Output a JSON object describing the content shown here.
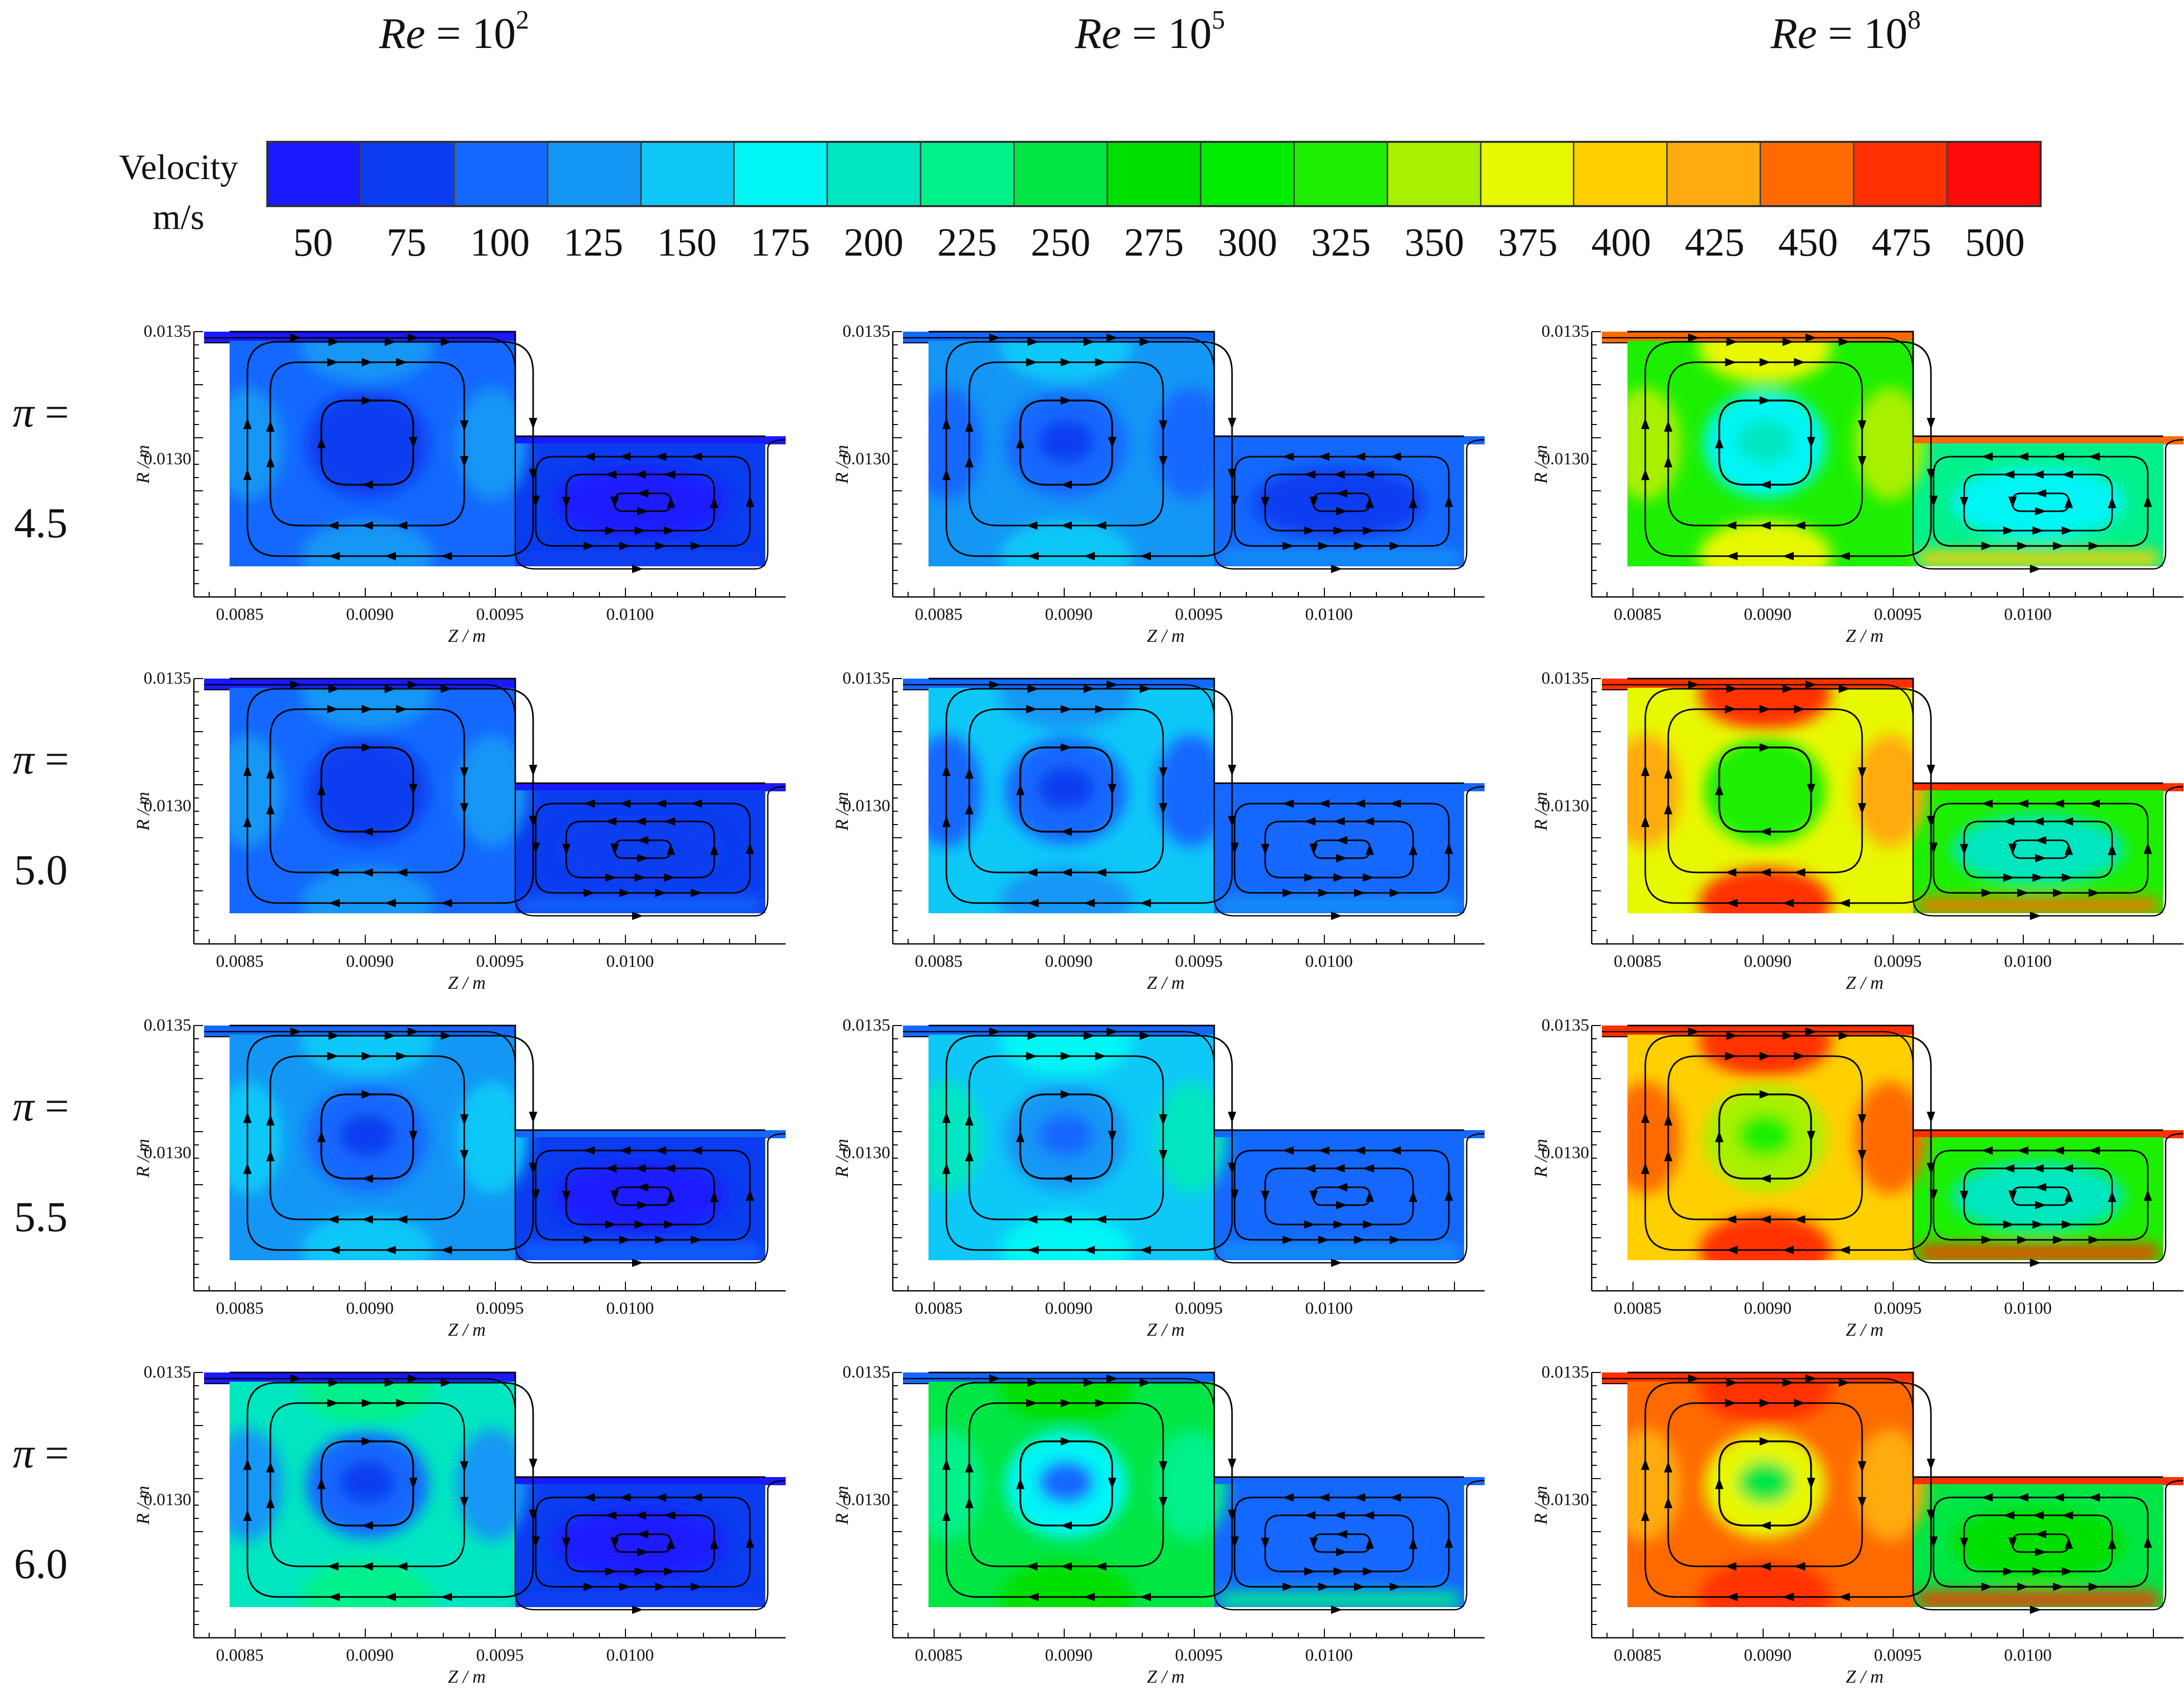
{
  "column_headers": [
    {
      "prefix": "Re",
      "base": " = 10",
      "exp": "2"
    },
    {
      "prefix": "Re",
      "base": " = 10",
      "exp": "5"
    },
    {
      "prefix": "Re",
      "base": " = 10",
      "exp": "8"
    }
  ],
  "colorbar": {
    "title_line1": "Velocity",
    "title_line2": "m/s",
    "colors": [
      "#1a1aff",
      "#0a3cf0",
      "#1468ff",
      "#1496f5",
      "#0ec8f8",
      "#00f5f5",
      "#00e6c0",
      "#00f08a",
      "#00e644",
      "#00e000",
      "#00ec00",
      "#1cf000",
      "#a8f000",
      "#e8f800",
      "#ffd000",
      "#ffaa10",
      "#ff6a00",
      "#ff3000",
      "#ff0a0a"
    ],
    "ticks": [
      "50",
      "75",
      "100",
      "125",
      "150",
      "175",
      "200",
      "225",
      "250",
      "275",
      "300",
      "325",
      "350",
      "375",
      "400",
      "425",
      "450",
      "475",
      "500"
    ]
  },
  "row_labels": [
    {
      "pi": "π",
      "eq": " =",
      "value": "4.5"
    },
    {
      "pi": "π",
      "eq": " =",
      "value": "5.0"
    },
    {
      "pi": "π",
      "eq": " =",
      "value": "5.5"
    },
    {
      "pi": "π",
      "eq": " =",
      "value": "6.0"
    }
  ],
  "axes": {
    "x_ticks": [
      "0.0085",
      "0.0090",
      "0.0095",
      "0.0100"
    ],
    "y_ticks": [
      "0.0135",
      "0.0130"
    ],
    "x_label": "Z / m",
    "y_label": "R / m"
  },
  "panels": [
    {
      "row": 0,
      "col": 0,
      "base": "#1468ff",
      "outer": [
        "#1496f5",
        "#1496f5",
        "#1496f5",
        "#1496f5"
      ],
      "center": "#0a3cf0",
      "core": "#0a3cf0",
      "right_base": "#0a3cf0",
      "right_center": "#1a1aff",
      "right_band": "#0a3cf0",
      "jet": "#1a1aff"
    },
    {
      "row": 0,
      "col": 1,
      "base": "#1496f5",
      "outer": [
        "#0ec8f8",
        "#0ec8f8",
        "#1468ff",
        "#1468ff"
      ],
      "center": "#1468ff",
      "core": "#0a3cf0",
      "right_base": "#1468ff",
      "right_center": "#0a3cf0",
      "right_band": "#1496f5",
      "jet": "#1468ff"
    },
    {
      "row": 0,
      "col": 2,
      "base": "#1cf000",
      "outer": [
        "#e8f800",
        "#e8f800",
        "#a8f000",
        "#a8f000"
      ],
      "center": "#00f5f5",
      "core": "#00e6c0",
      "right_base": "#00f08a",
      "right_center": "#00f5f5",
      "right_band": "#ffd000",
      "jet": "#ff6a00"
    },
    {
      "row": 1,
      "col": 0,
      "base": "#1468ff",
      "outer": [
        "#1496f5",
        "#1496f5",
        "#1496f5",
        "#1496f5"
      ],
      "center": "#0a3cf0",
      "core": "#0a3cf0",
      "right_base": "#0a3cf0",
      "right_center": "#0a3cf0",
      "right_band": "#1468ff",
      "jet": "#1a1aff"
    },
    {
      "row": 1,
      "col": 1,
      "base": "#0ec8f8",
      "outer": [
        "#1496f5",
        "#1496f5",
        "#1468ff",
        "#1468ff"
      ],
      "center": "#1468ff",
      "core": "#0a3cf0",
      "right_base": "#1468ff",
      "right_center": "#1468ff",
      "right_band": "#1496f5",
      "jet": "#1468ff"
    },
    {
      "row": 1,
      "col": 2,
      "base": "#e8f800",
      "outer": [
        "#ff3000",
        "#ff3000",
        "#ffaa10",
        "#ffaa10"
      ],
      "center": "#1cf000",
      "core": "#1cf000",
      "right_base": "#1cf000",
      "right_center": "#00e6c0",
      "right_band": "#ff6a00",
      "jet": "#ff3000"
    },
    {
      "row": 2,
      "col": 0,
      "base": "#1496f5",
      "outer": [
        "#0ec8f8",
        "#0ec8f8",
        "#0ec8f8",
        "#0ec8f8"
      ],
      "center": "#1468ff",
      "core": "#0a3cf0",
      "right_base": "#0a3cf0",
      "right_center": "#1a1aff",
      "right_band": "#1468ff",
      "jet": "#1468ff"
    },
    {
      "row": 2,
      "col": 1,
      "base": "#0ec8f8",
      "outer": [
        "#00f5f5",
        "#00f5f5",
        "#00e6c0",
        "#00e6c0"
      ],
      "center": "#1496f5",
      "core": "#1468ff",
      "right_base": "#1468ff",
      "right_center": "#1468ff",
      "right_band": "#1496f5",
      "jet": "#1468ff"
    },
    {
      "row": 2,
      "col": 2,
      "base": "#ffd000",
      "outer": [
        "#ff3000",
        "#ff3000",
        "#ff6a00",
        "#ff6a00"
      ],
      "center": "#a8f000",
      "core": "#1cf000",
      "right_base": "#1cf000",
      "right_center": "#00e6c0",
      "right_band": "#ff3000",
      "jet": "#ff3000"
    },
    {
      "row": 3,
      "col": 0,
      "base": "#00e6c0",
      "outer": [
        "#00f08a",
        "#00f08a",
        "#1496f5",
        "#1496f5"
      ],
      "center": "#1468ff",
      "core": "#0a3cf0",
      "right_base": "#0a3cf0",
      "right_center": "#1a1aff",
      "right_band": "#0a3cf0",
      "jet": "#1a1aff"
    },
    {
      "row": 3,
      "col": 1,
      "base": "#00e644",
      "outer": [
        "#00e000",
        "#00e000",
        "#00f08a",
        "#00f08a"
      ],
      "center": "#00f5f5",
      "core": "#1468ff",
      "right_base": "#1468ff",
      "right_center": "#1468ff",
      "right_band": "#00f08a",
      "jet": "#1468ff"
    },
    {
      "row": 3,
      "col": 2,
      "base": "#ff6a00",
      "outer": [
        "#ff3000",
        "#ff3000",
        "#ffaa10",
        "#ffaa10"
      ],
      "center": "#e8f800",
      "core": "#00e644",
      "right_base": "#00e644",
      "right_center": "#00e000",
      "right_band": "#ff3000",
      "jet": "#ff3000"
    }
  ]
}
